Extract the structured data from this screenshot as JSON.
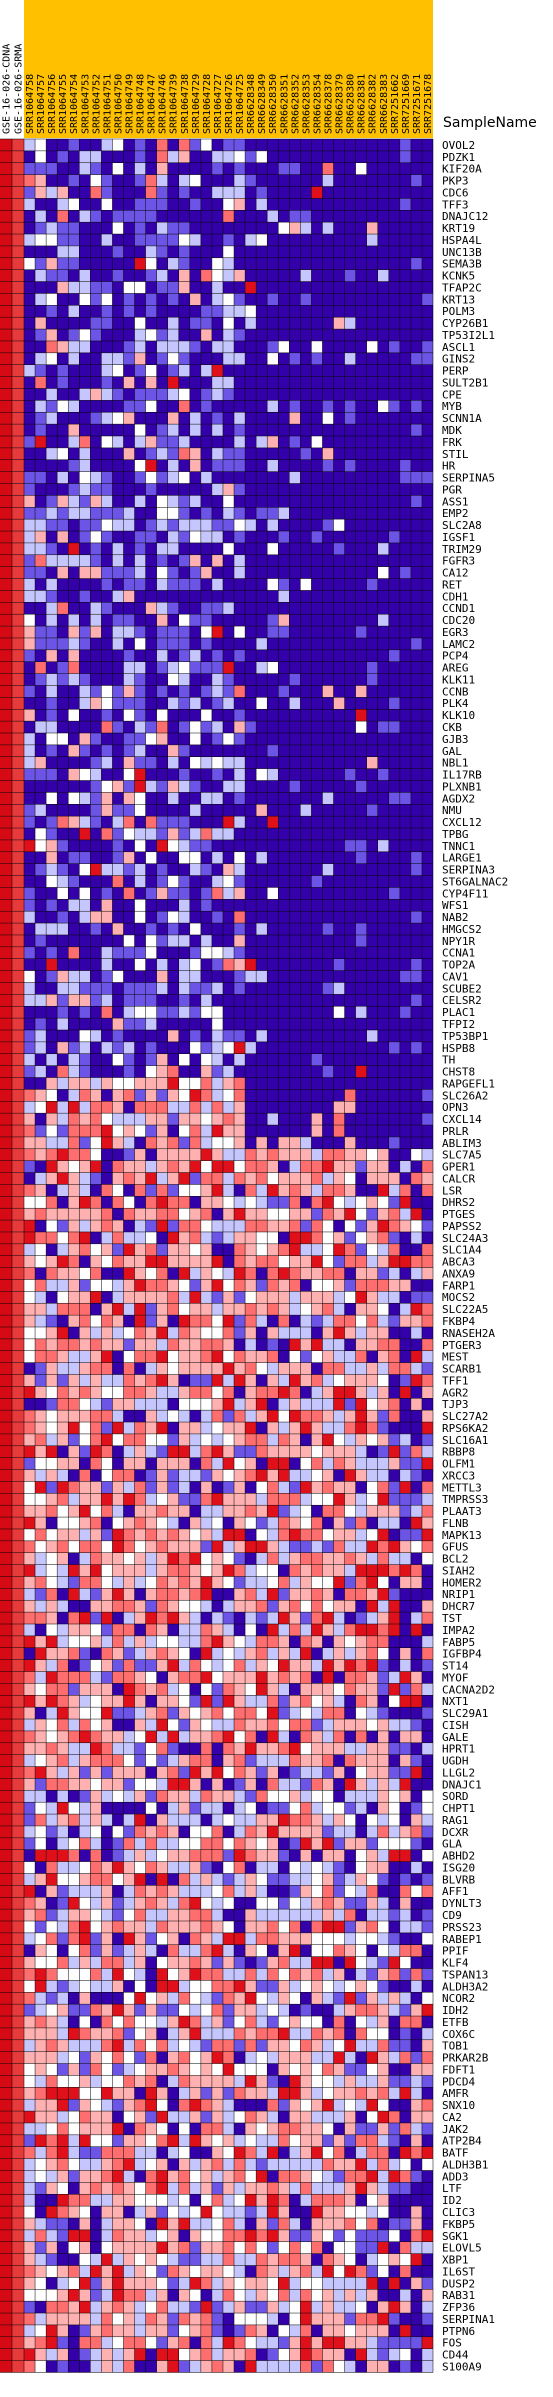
{
  "chart_data": {
    "type": "heatmap",
    "row_header": "SampleName",
    "palette": {
      "-3": "#3300aa",
      "-2": "#6c55e6",
      "-1": "#c6c6ff",
      "0": "#ffffff",
      "1": "#ffb0b0",
      "2": "#ff6e6e",
      "3": "#e0101a"
    },
    "colorbar_colors": [
      "#d50a15",
      "#e73a3a"
    ],
    "header_band_colors": [
      "#ffffff",
      "#ffc000",
      "#ffffff",
      "#ffc000",
      "#ffffff"
    ],
    "columns": [
      "GSE-16-026-CDNA",
      "GSE-16-026-SRMA",
      "SRR1064758",
      "SRR1064757",
      "SRR1064756",
      "SRR1064755",
      "SRR1064754",
      "SRR1064753",
      "SRR1064752",
      "SRR1064751",
      "SRR1064750",
      "SRR1064749",
      "SRR1064748",
      "SRR1064747",
      "SRR1064746",
      "SRR1064739",
      "SRR1064738",
      "SRR1064729",
      "SRR1064728",
      "SRR1064727",
      "SRR1064726",
      "SRR1064725",
      "SRR6628348",
      "SRR6628349",
      "SRR6628350",
      "SRR6628351",
      "SRR6628352",
      "SRR6628353",
      "SRR6628354",
      "SRR6628378",
      "SRR6628379",
      "SRR6628380",
      "SRR6628381",
      "SRR6628382",
      "SRR6628383",
      "SRR7251662",
      "SRR7251669",
      "SRR7251671",
      "SRR7251678"
    ],
    "genes": [
      "OVOL2",
      "PDZK1",
      "KIF20A",
      "PKP3",
      "CDC6",
      "TFF3",
      "DNAJC12",
      "KRT19",
      "HSPA4L",
      "UNC13B",
      "SEMA3B",
      "KCNK5",
      "TFAP2C",
      "KRT13",
      "POLM3",
      "CYP26B1",
      "TP53I2L1",
      "ASCL1",
      "GINS2",
      "PERP",
      "SULT2B1",
      "CPE",
      "MYB",
      "SCNN1A",
      "MDK",
      "FRK",
      "STIL",
      "HR",
      "SERPINA5",
      "PGR",
      "ASS1",
      "EMP2",
      "SLC2A8",
      "IGSF1",
      "TRIM29",
      "FGFR3",
      "CA12",
      "RET",
      "CDH1",
      "CCND1",
      "CDC20",
      "EGR3",
      "LAMC2",
      "PCP4",
      "AREG",
      "KLK11",
      "CCNB",
      "PLK4",
      "KLK10",
      "CKB",
      "GJB3",
      "GAL",
      "NBL1",
      "IL17RB",
      "PLXNB1",
      "AGDX2",
      "NMU",
      "CXCL12",
      "TPBG",
      "TNNC1",
      "LARGE1",
      "SERPINA3",
      "ST6GALNAC2",
      "CYP4F11",
      "WFS1",
      "NAB2",
      "HMGCS2",
      "NPY1R",
      "CCNA1",
      "TOP2A",
      "CAV1",
      "SCUBE2",
      "CELSR2",
      "PLAC1",
      "TFPI2",
      "TP53BP1",
      "HSPB8",
      "TH",
      "CHST8",
      "RAPGEFL1",
      "SLC26A2",
      "OPN3",
      "CXCL14",
      "PRLR",
      "ABLIM3",
      "SLC7A5",
      "GPER1",
      "CALCR",
      "LSR",
      "DHRS2",
      "PTGES",
      "PAPSS2",
      "SLC24A3",
      "SLC1A4",
      "ABCA3",
      "ANXA9",
      "FARP1",
      "MOCS2",
      "SLC22A5",
      "FKBP4",
      "RNASEH2A",
      "PTGER3",
      "MEST",
      "SCARB1",
      "TFF1",
      "AGR2",
      "TJP3",
      "SLC27A2",
      "RPS6KA2",
      "SLC16A1",
      "RBBP8",
      "OLFM1",
      "XRCC3",
      "METTL3",
      "TMPRSS3",
      "PLAAT3",
      "FLNB",
      "MAPK13",
      "GFUS",
      "BCL2",
      "SIAH2",
      "HOMER2",
      "NRIP1",
      "DHCR7",
      "TST",
      "IMPA2",
      "FABP5",
      "IGFBP4",
      "ST14",
      "MYOF",
      "CACNA2D2",
      "NXT1",
      "SLC29A1",
      "CISH",
      "GALE",
      "HPRT1",
      "UGDH",
      "LLGL2",
      "DNAJC1",
      "SORD",
      "CHPT1",
      "RAG1",
      "DCXR",
      "GLA",
      "ABHD2",
      "ISG20",
      "BLVRB",
      "AFF1",
      "DYNLT3",
      "CD9",
      "PRSS23",
      "RABEP1",
      "PPIF",
      "KLF4",
      "TSPAN13",
      "ALDH3A2",
      "NCOR2",
      "IDH2",
      "ETFB",
      "COX6C",
      "TOB1",
      "PRKAR2B",
      "FDFT1",
      "PDCD4",
      "AMFR",
      "SNX10",
      "CA2",
      "JAK2",
      "ATP2B4",
      "BATF",
      "ALDH3B1",
      "ADD3",
      "LTF",
      "ID2",
      "CLIC3",
      "FKBP5",
      "SGK1",
      "ELOVL5",
      "XBP1",
      "IL6ST",
      "DUSP2",
      "RAB31",
      "ZFP36",
      "SERPINA1",
      "PTPN6",
      "FOS",
      "CD44",
      "S100A9"
    ]
  }
}
